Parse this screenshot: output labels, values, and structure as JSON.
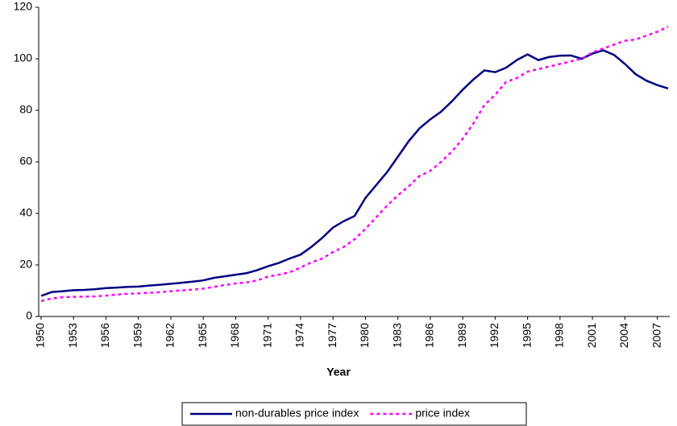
{
  "chart_data": {
    "type": "line",
    "x_label": "Year",
    "categories": [
      "1950",
      null,
      null,
      "1953",
      null,
      null,
      "1956",
      null,
      null,
      "1959",
      null,
      null,
      "1962",
      null,
      null,
      "1965",
      null,
      null,
      "1968",
      null,
      null,
      "1971",
      null,
      null,
      "1974",
      null,
      null,
      "1977",
      null,
      null,
      "1980",
      null,
      null,
      "1983",
      null,
      null,
      "1986",
      null,
      null,
      "1989",
      null,
      null,
      "1992",
      null,
      null,
      "1995",
      null,
      null,
      "1998",
      null,
      null,
      "2001",
      null,
      null,
      "2004",
      null,
      null,
      "2007",
      null
    ],
    "series": [
      {
        "name": "non-durables price index",
        "color": "#000080",
        "dash": false,
        "values": [
          8,
          9.5,
          9.8,
          10.2,
          10.3,
          10.6,
          11,
          11.2,
          11.5,
          11.6,
          12,
          12.3,
          12.7,
          13.1,
          13.5,
          14,
          15,
          15.6,
          16.2,
          16.8,
          18,
          19.5,
          20.8,
          22.5,
          24,
          27,
          30.5,
          34.5,
          37,
          39,
          46,
          51,
          56,
          62,
          68,
          73,
          76.5,
          79.5,
          83.5,
          88,
          92,
          95.5,
          94.8,
          96.5,
          99.5,
          101.7,
          99.5,
          100.7,
          101.2,
          101.3,
          100,
          102,
          103.3,
          101.5,
          98,
          94,
          91.5,
          89.8,
          88.5
        ]
      },
      {
        "name": "price index",
        "color": "#ff00ff",
        "dash": true,
        "values": [
          6,
          7,
          7.5,
          7.6,
          7.7,
          7.8,
          8.1,
          8.5,
          8.8,
          9,
          9.2,
          9.4,
          9.8,
          10.1,
          10.4,
          10.8,
          11.5,
          12.2,
          12.8,
          13.2,
          14,
          15.5,
          16.2,
          17.2,
          19,
          21,
          22.5,
          25,
          27,
          30,
          34,
          38.5,
          43,
          47,
          50.5,
          54.5,
          56.5,
          60,
          64,
          69,
          75,
          82,
          86,
          91,
          92.5,
          95,
          96,
          97,
          98,
          99,
          100,
          102.5,
          104,
          105.5,
          107,
          107.5,
          109,
          110.5,
          112.5
        ]
      }
    ],
    "ylim": [
      0,
      120
    ],
    "yticks": [
      0,
      20,
      40,
      60,
      80,
      100,
      120
    ],
    "grid": false,
    "legend": "bottom"
  }
}
